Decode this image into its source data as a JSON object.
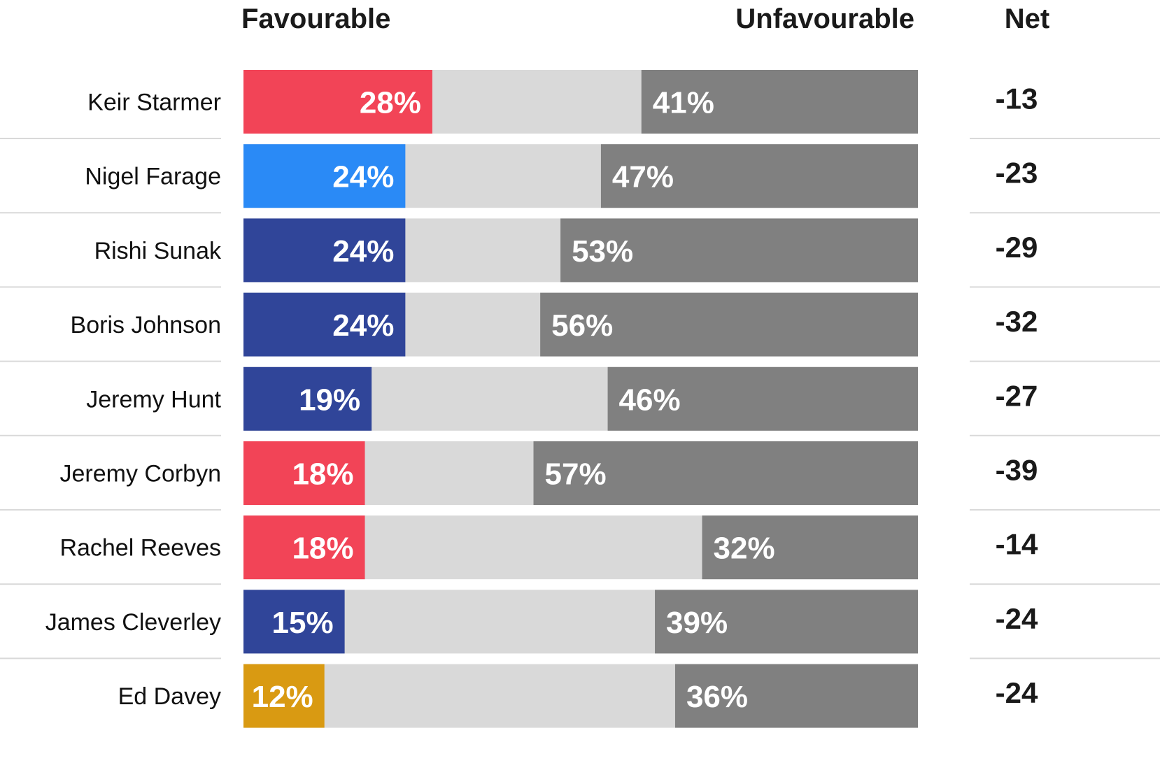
{
  "chart_data": {
    "type": "bar",
    "stacked": true,
    "orientation": "horizontal",
    "headers": {
      "favourable": "Favourable",
      "unfavourable": "Unfavourable",
      "net": "Net"
    },
    "categories": [
      "Keir Starmer",
      "Nigel Farage",
      "Rishi Sunak",
      "Boris Johnson",
      "Jeremy Hunt",
      "Jeremy Corbyn",
      "Rachel Reeves",
      "James Cleverley",
      "Ed Davey"
    ],
    "favourable": [
      28,
      24,
      24,
      24,
      19,
      18,
      18,
      15,
      12
    ],
    "unfavourable": [
      41,
      47,
      53,
      56,
      46,
      57,
      32,
      39,
      36
    ],
    "favourable_labels": [
      "28%",
      "24%",
      "24%",
      "24%",
      "19%",
      "18%",
      "18%",
      "15%",
      "12%"
    ],
    "unfavourable_labels": [
      "41%",
      "47%",
      "53%",
      "56%",
      "46%",
      "57%",
      "32%",
      "39%",
      "36%"
    ],
    "net": [
      "-13",
      "-23",
      "-29",
      "-32",
      "-27",
      "-39",
      "-14",
      "-24",
      "-24"
    ],
    "favourable_colors": [
      "#f24457",
      "#2a8af6",
      "#304599",
      "#304599",
      "#304599",
      "#f24457",
      "#f24457",
      "#304599",
      "#d99a12"
    ],
    "neutral_color": "#d9d9d9",
    "unfavourable_color": "#808080",
    "xlim": [
      0,
      100
    ]
  }
}
